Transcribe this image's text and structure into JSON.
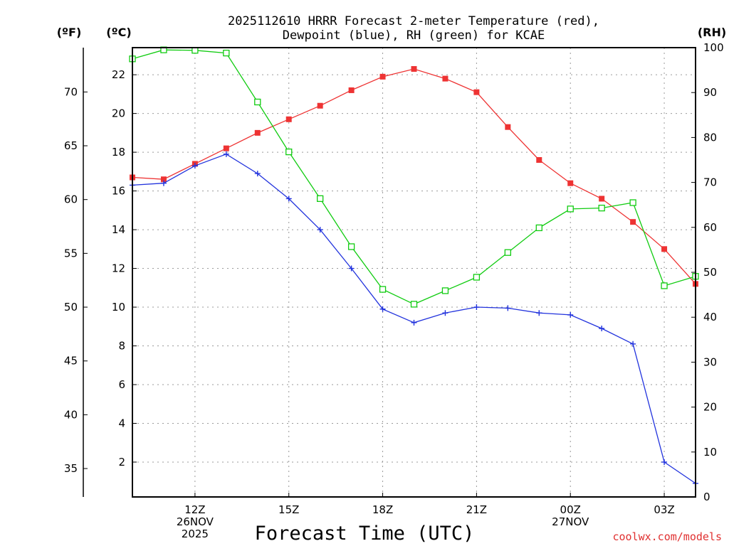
{
  "title": {
    "line1": "2025112610 HRRR Forecast 2-meter Temperature (red),",
    "line2": "Dewpoint (blue), RH (green) for KCAE"
  },
  "units": {
    "f": "(ºF)",
    "c": "(ºC)",
    "rh": "(RH)"
  },
  "credit": "coolwx.com/models",
  "credit_color": "#e03030",
  "colors": {
    "temp": "#ee3333",
    "dewpoint": "#2233dd",
    "rh": "#11cc11"
  },
  "chart_data": {
    "type": "line",
    "title": "2025112610 HRRR Forecast 2-meter Temperature (red), Dewpoint (blue), RH (green) for KCAE",
    "xlabel": "Forecast Time (UTC)",
    "x_hours": [
      10,
      11,
      12,
      13,
      14,
      15,
      16,
      17,
      18,
      19,
      20,
      21,
      22,
      23,
      24,
      25,
      26,
      27,
      28
    ],
    "xlim": [
      10,
      28
    ],
    "x_ticks": [
      {
        "hour": 12,
        "lines": [
          "12Z",
          "26NOV",
          "2025"
        ]
      },
      {
        "hour": 15,
        "lines": [
          "15Z"
        ]
      },
      {
        "hour": 18,
        "lines": [
          "18Z"
        ]
      },
      {
        "hour": 21,
        "lines": [
          "21Z"
        ]
      },
      {
        "hour": 24,
        "lines": [
          "00Z",
          "27NOV"
        ]
      },
      {
        "hour": 27,
        "lines": [
          "03Z"
        ]
      }
    ],
    "ylim_c": [
      0.2,
      23.4
    ],
    "ylim_rh": [
      0,
      100
    ],
    "y_ticks_c": [
      2,
      4,
      6,
      8,
      10,
      12,
      14,
      16,
      18,
      20,
      22
    ],
    "y_ticks_f": [
      35,
      40,
      45,
      50,
      55,
      60,
      65,
      70
    ],
    "y_ticks_rh": [
      0,
      10,
      20,
      30,
      40,
      50,
      60,
      70,
      80,
      90,
      100
    ],
    "grid": true,
    "series": [
      {
        "name": "Temperature",
        "unit": "C",
        "marker": "filled-square",
        "values": [
          16.7,
          16.6,
          17.4,
          18.2,
          19.0,
          19.7,
          20.4,
          21.2,
          21.9,
          22.3,
          21.8,
          21.1,
          19.3,
          17.6,
          16.4,
          15.6,
          14.4,
          13.0,
          11.2
        ]
      },
      {
        "name": "Dewpoint",
        "unit": "C",
        "marker": "plus",
        "values": [
          16.3,
          16.4,
          17.3,
          17.9,
          16.9,
          15.6,
          14.0,
          12.0,
          9.9,
          9.2,
          9.7,
          10.0,
          9.95,
          9.7,
          9.6,
          8.9,
          8.1,
          2.0,
          0.9
        ]
      },
      {
        "name": "RH",
        "unit": "%",
        "marker": "open-square",
        "values": [
          97.5,
          99.5,
          99.4,
          98.8,
          87.9,
          76.8,
          66.4,
          55.7,
          46.2,
          42.9,
          45.9,
          48.9,
          54.4,
          59.9,
          64.1,
          64.3,
          65.5,
          47.0,
          49.1
        ]
      }
    ]
  }
}
